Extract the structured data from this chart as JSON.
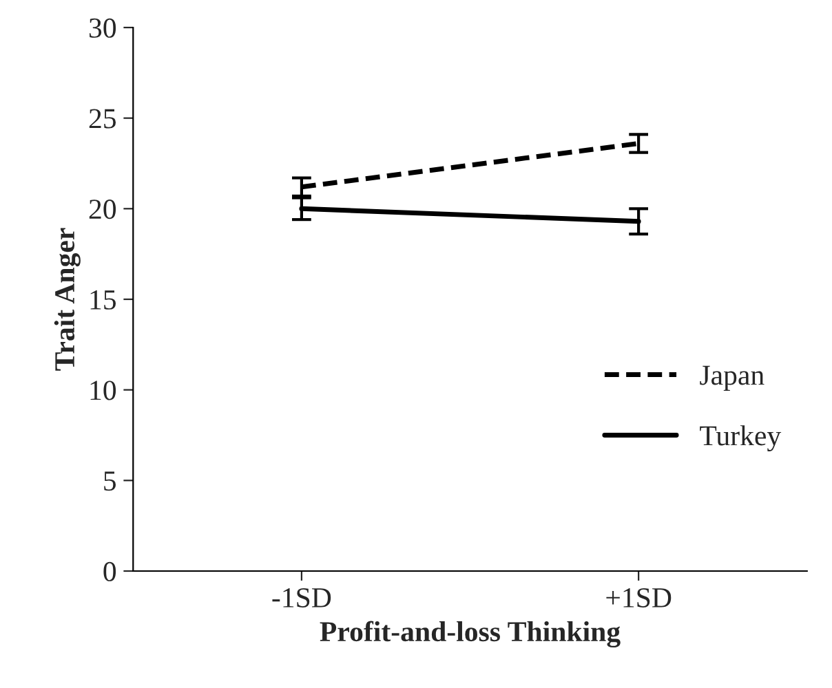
{
  "chart_data": {
    "type": "line",
    "xlabel": "Profit-and-loss Thinking",
    "ylabel": "Trait Anger",
    "categories": [
      "-1SD",
      "+1SD"
    ],
    "series": [
      {
        "name": "Japan",
        "color": "#000000",
        "values": [
          21.2,
          23.6
        ],
        "errors": [
          0.5,
          0.5
        ],
        "line_style": "dashed"
      },
      {
        "name": "Turkey",
        "color": "#000000",
        "values": [
          20.0,
          19.3
        ],
        "errors": [
          0.6,
          0.7
        ],
        "line_style": "solid"
      }
    ],
    "ylim": [
      0,
      30
    ],
    "yticks": [
      0,
      5,
      10,
      15,
      20,
      25,
      30
    ],
    "legend": "right",
    "grid": false,
    "marker": "none"
  }
}
